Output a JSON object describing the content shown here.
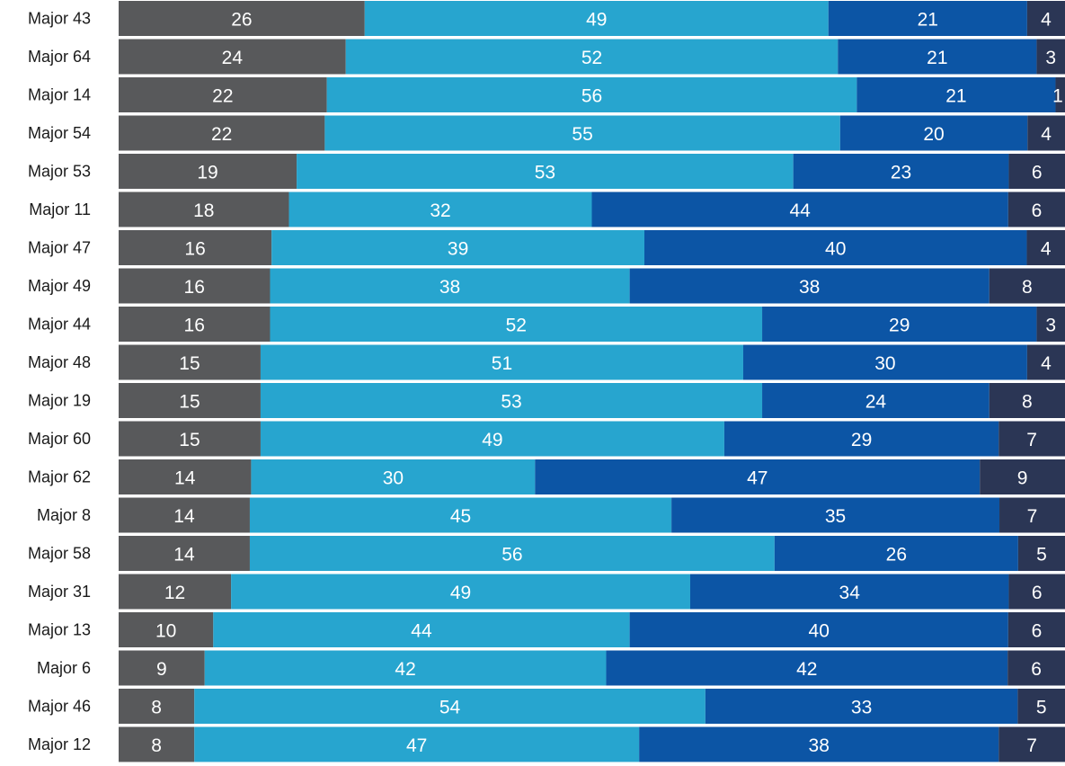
{
  "chart_data": {
    "type": "bar",
    "orientation": "horizontal",
    "stacked": true,
    "normalized_100": true,
    "categories": [
      "Major 43",
      "Major 64",
      "Major 14",
      "Major 54",
      "Major 53",
      "Major 11",
      "Major 47",
      "Major 49",
      "Major 44",
      "Major 48",
      "Major 19",
      "Major 60",
      "Major 62",
      "Major 8",
      "Major 58",
      "Major 31",
      "Major 13",
      "Major 6",
      "Major 46",
      "Major 12"
    ],
    "series": [
      {
        "color": "#58595b",
        "values": [
          26,
          24,
          22,
          22,
          19,
          18,
          16,
          16,
          16,
          15,
          15,
          15,
          14,
          14,
          14,
          12,
          10,
          9,
          8,
          8
        ]
      },
      {
        "color": "#27a5cf",
        "values": [
          49,
          52,
          56,
          55,
          53,
          32,
          39,
          38,
          52,
          51,
          53,
          49,
          30,
          45,
          56,
          49,
          44,
          42,
          54,
          47
        ]
      },
      {
        "color": "#0c55a5",
        "values": [
          21,
          21,
          21,
          20,
          23,
          44,
          40,
          38,
          29,
          30,
          24,
          29,
          47,
          35,
          26,
          34,
          40,
          42,
          33,
          38
        ]
      },
      {
        "color": "#2b3655",
        "values": [
          4,
          3,
          1,
          4,
          6,
          6,
          4,
          8,
          3,
          4,
          8,
          7,
          9,
          7,
          5,
          6,
          6,
          6,
          5,
          7
        ]
      }
    ],
    "title": "",
    "xlabel": "",
    "ylabel": "",
    "legend": "none",
    "grid": false
  }
}
